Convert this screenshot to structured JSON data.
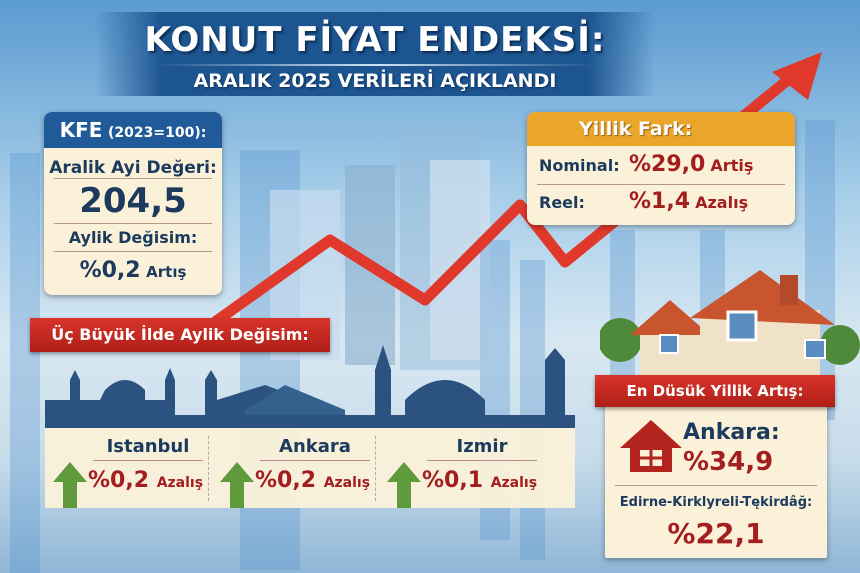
{
  "header": {
    "title": "KONUT FİYAT ENDEKSİ:",
    "subtitle": "ARALIK 2025 VERİLERİ AÇIKLANDI"
  },
  "kfe_card": {
    "title": "KFE",
    "base": "(2023=100):",
    "value_label": "Aralik Ayi Değeri:",
    "value": "204,5",
    "change_label": "Aylik Değisim:",
    "change_value": "%0,2",
    "change_word": "Artış"
  },
  "annual_card": {
    "title": "Yillik Fark:",
    "rows": [
      {
        "label": "Nominal:",
        "value": "%29,0",
        "word": "Artiş"
      },
      {
        "label": "Reel:",
        "value": "%1,4",
        "word": "Azalış"
      }
    ]
  },
  "cities_ribbon": "Üç Büyük İlde Aylik Değisim:",
  "cities": [
    {
      "name": "Istanbul",
      "value": "%0,2",
      "word": "Azalış",
      "icon": "green-up-arrow"
    },
    {
      "name": "Ankara",
      "value": "%0,2",
      "word": "Azalış",
      "icon": "green-up-arrow"
    },
    {
      "name": "Izmir",
      "value": "%0,1",
      "word": "Azalış",
      "icon": "green-up-arrow"
    }
  ],
  "lowest_card": {
    "ribbon": "En Düsük Yillik Artış:",
    "first_name": "Ankara:",
    "first_value": "%34,9",
    "second_name": "Edirne-Kirklyreli-Tękirdâğ:",
    "second_value": "%22,1",
    "icon": "house-icon"
  },
  "colors": {
    "navy": "#1b3a5e",
    "red": "#a31e1e",
    "banner": "#1d5591",
    "orange": "#eaa62a",
    "green": "#5f9a3d"
  }
}
